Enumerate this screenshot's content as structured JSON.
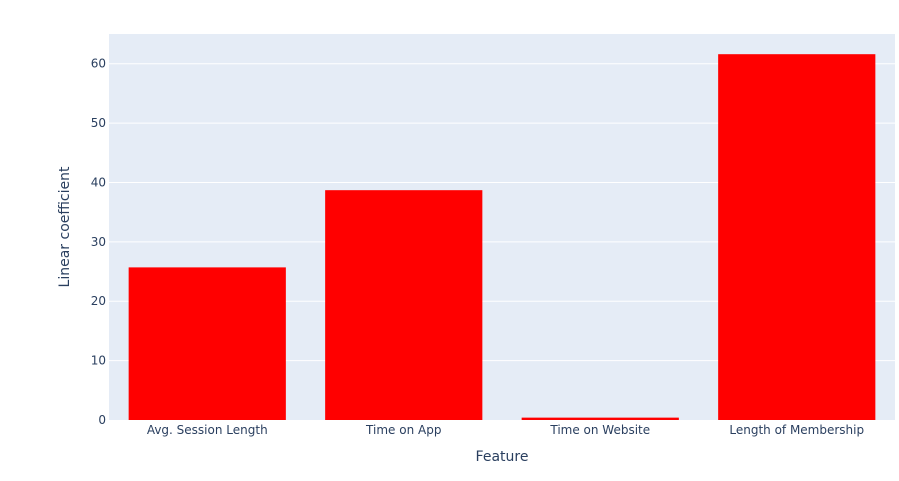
{
  "chart_data": {
    "type": "bar",
    "categories": [
      "Avg. Session Length",
      "Time on App",
      "Time on Website",
      "Length of Membership"
    ],
    "values": [
      25.7,
      38.7,
      0.4,
      61.6
    ],
    "xlabel": "Feature",
    "ylabel": "Linear coefficient",
    "ylim": [
      0,
      65
    ],
    "yticks": [
      0,
      10,
      20,
      30,
      40,
      50,
      60
    ],
    "grid": true,
    "colors": {
      "bar": "#ff0000",
      "plot_background": "#e5ecf6",
      "gridline": "#ffffff",
      "text": "#2a3f5f"
    }
  }
}
